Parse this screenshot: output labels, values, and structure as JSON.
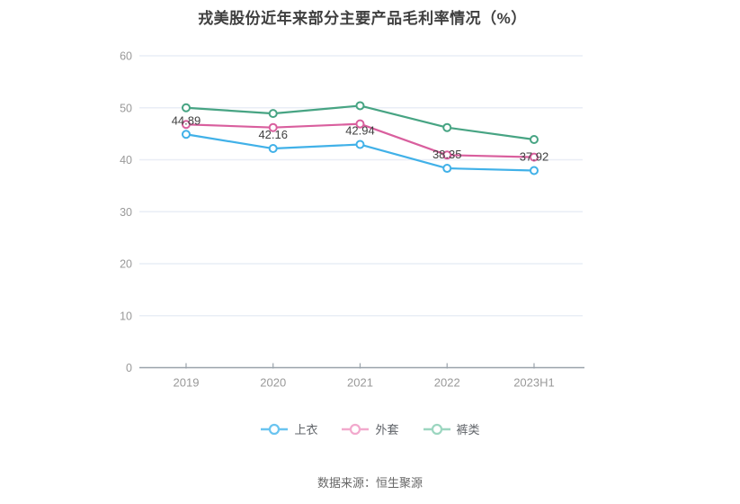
{
  "title": "戎美股份近年来部分主要产品毛利率情况（%）",
  "source": "数据来源：恒生聚源",
  "colors": {
    "background": "#ffffff",
    "grid": "#e9eef6",
    "axis": "#9aa3ab",
    "tick_label": "#999999",
    "title_text": "#404040",
    "data_label": "#404040",
    "legend_text": "#5f6368",
    "source_text": "#666666"
  },
  "chart_data": {
    "type": "line",
    "title": "戎美股份近年来部分主要产品毛利率情况（%）",
    "xlabel": "",
    "ylabel": "",
    "categories": [
      "2019",
      "2020",
      "2021",
      "2022",
      "2023H1"
    ],
    "series": [
      {
        "name": "上衣",
        "color": "#41b1e8",
        "legend_color": "#6ac4f0",
        "values": [
          44.89,
          42.16,
          42.94,
          38.35,
          37.92
        ],
        "labels": [
          "44.89",
          "42.16",
          "42.94",
          "38.35",
          "37.92"
        ],
        "show_labels": true
      },
      {
        "name": "外套",
        "color": "#d95f9e",
        "legend_color": "#f2a9cd",
        "values": [
          46.8,
          46.2,
          46.9,
          40.9,
          40.5
        ],
        "labels": [],
        "show_labels": false
      },
      {
        "name": "裤类",
        "color": "#47a483",
        "legend_color": "#9cd6c0",
        "values": [
          50.0,
          48.9,
          50.4,
          46.2,
          43.9
        ],
        "labels": [],
        "show_labels": false
      }
    ],
    "ylim": [
      0,
      60
    ],
    "yticks": [
      0,
      10,
      20,
      30,
      40,
      50,
      60
    ],
    "grid": true,
    "legend_position": "bottom"
  }
}
